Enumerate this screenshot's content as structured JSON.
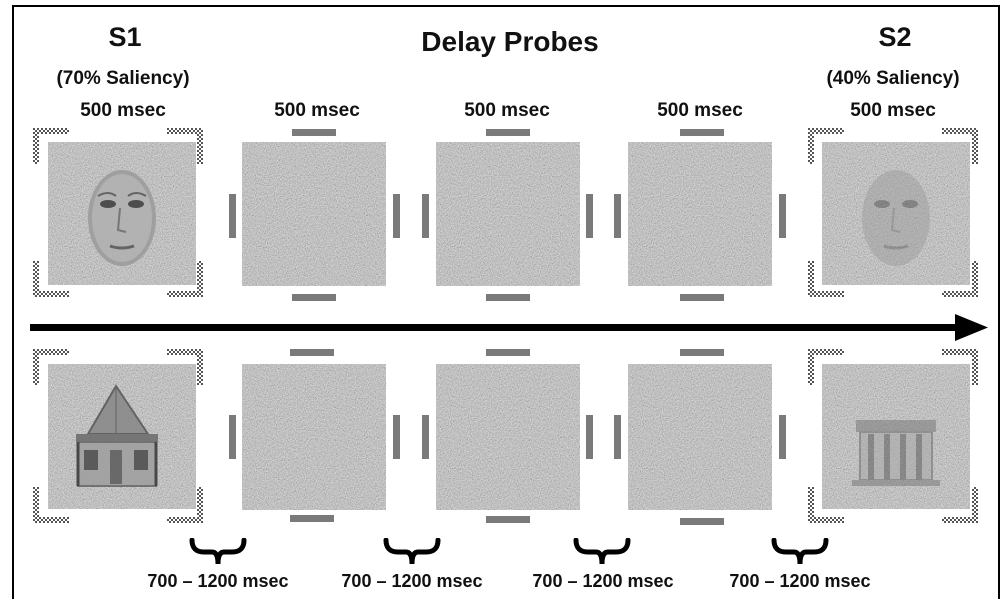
{
  "stimulus1": {
    "label": "S1",
    "saliency": "(70% Saliency)",
    "duration": "500 msec"
  },
  "probes": {
    "label": "Delay Probes",
    "durations": [
      "500 msec",
      "500 msec",
      "500 msec"
    ]
  },
  "stimulus2": {
    "label": "S2",
    "saliency": "(40% Saliency)",
    "duration": "500 msec"
  },
  "delays": [
    "700 – 1200 msec",
    "700 – 1200 msec",
    "700 – 1200 msec",
    "700 – 1200 msec"
  ],
  "rows": [
    {
      "s1_image": "face-icon",
      "s2_image": "face-icon"
    },
    {
      "s1_image": "house-icon",
      "s2_image": "building-icon"
    }
  ],
  "colors": {
    "noise": "#bdbdbd",
    "marker": "#7a7a7a",
    "arrow": "#000000"
  }
}
